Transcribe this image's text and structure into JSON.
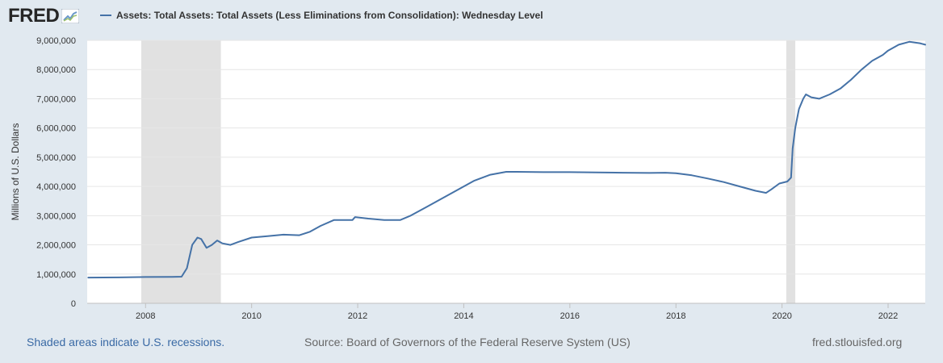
{
  "header": {
    "logo_text": "FRED",
    "legend_label": "Assets: Total Assets: Total Assets (Less Eliminations from Consolidation): Wednesday Level"
  },
  "footer": {
    "recession_note": "Shaded areas indicate U.S. recessions.",
    "source": "Source: Board of Governors of the Federal Reserve System (US)",
    "site": "fred.stlouisfed.org"
  },
  "colors": {
    "series": "#4572a7",
    "recession": "#e1e1e1",
    "grid": "#e6e6e6",
    "background": "#e1e9f0",
    "plot": "#ffffff"
  },
  "chart_data": {
    "type": "line",
    "title": "Assets: Total Assets: Total Assets (Less Eliminations from Consolidation): Wednesday Level",
    "xlabel": "",
    "ylabel": "Millions of U.S. Dollars",
    "xlim": [
      2006.9,
      2022.7
    ],
    "ylim": [
      0,
      9000000
    ],
    "yticks": [
      0,
      1000000,
      2000000,
      3000000,
      4000000,
      5000000,
      6000000,
      7000000,
      8000000,
      9000000
    ],
    "ytick_labels": [
      "0",
      "1,000,000",
      "2,000,000",
      "3,000,000",
      "4,000,000",
      "5,000,000",
      "6,000,000",
      "7,000,000",
      "8,000,000",
      "9,000,000"
    ],
    "xticks": [
      2008,
      2010,
      2012,
      2014,
      2016,
      2018,
      2020,
      2022
    ],
    "xtick_labels": [
      "2008",
      "2010",
      "2012",
      "2014",
      "2016",
      "2018",
      "2020",
      "2022"
    ],
    "recessions": [
      [
        2007.92,
        2009.42
      ],
      [
        2020.08,
        2020.25
      ]
    ],
    "grid": true,
    "series": [
      {
        "name": "Assets: Total Assets: Total Assets (Less Eliminations from Consolidation): Wednesday Level",
        "x": [
          2006.92,
          2007.5,
          2008.0,
          2008.5,
          2008.68,
          2008.78,
          2008.88,
          2008.98,
          2009.05,
          2009.15,
          2009.25,
          2009.35,
          2009.45,
          2009.6,
          2009.75,
          2010.0,
          2010.3,
          2010.6,
          2010.9,
          2011.1,
          2011.3,
          2011.55,
          2011.9,
          2011.95,
          2012.2,
          2012.5,
          2012.8,
          2013.0,
          2013.3,
          2013.6,
          2013.9,
          2014.2,
          2014.5,
          2014.8,
          2015.0,
          2015.5,
          2016.0,
          2016.5,
          2017.0,
          2017.5,
          2017.8,
          2018.0,
          2018.3,
          2018.6,
          2018.9,
          2019.2,
          2019.5,
          2019.7,
          2019.8,
          2019.95,
          2020.1,
          2020.17,
          2020.2,
          2020.25,
          2020.32,
          2020.4,
          2020.45,
          2020.55,
          2020.7,
          2020.9,
          2021.1,
          2021.3,
          2021.5,
          2021.7,
          2021.9,
          2022.0,
          2022.2,
          2022.4,
          2022.6,
          2022.7
        ],
        "values": [
          880000,
          885000,
          900000,
          905000,
          910000,
          1200000,
          2000000,
          2250000,
          2200000,
          1900000,
          2000000,
          2150000,
          2050000,
          2000000,
          2100000,
          2250000,
          2300000,
          2350000,
          2330000,
          2450000,
          2650000,
          2850000,
          2850000,
          2950000,
          2900000,
          2850000,
          2850000,
          3000000,
          3300000,
          3600000,
          3900000,
          4200000,
          4400000,
          4500000,
          4500000,
          4490000,
          4490000,
          4480000,
          4470000,
          4460000,
          4470000,
          4450000,
          4380000,
          4270000,
          4150000,
          4000000,
          3850000,
          3780000,
          3900000,
          4100000,
          4170000,
          4300000,
          5300000,
          6000000,
          6650000,
          7000000,
          7150000,
          7050000,
          7000000,
          7150000,
          7350000,
          7650000,
          8000000,
          8300000,
          8500000,
          8650000,
          8850000,
          8950000,
          8900000,
          8850000
        ]
      }
    ]
  }
}
